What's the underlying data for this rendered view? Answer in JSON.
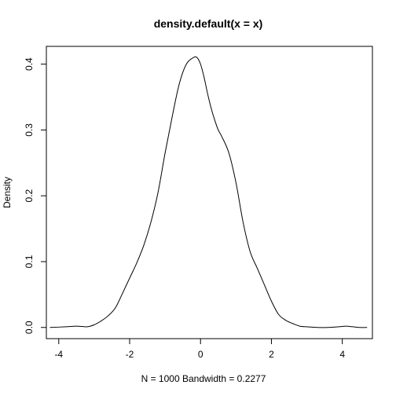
{
  "chart_data": {
    "type": "line",
    "title": "density.default(x = x)",
    "xlabel": "N = 1000   Bandwidth = 0.2277",
    "ylabel": "Density",
    "xlim": [
      -4.35,
      4.85
    ],
    "ylim": [
      -0.017,
      0.427
    ],
    "xticks": [
      -4,
      -2,
      0,
      2,
      4
    ],
    "yticks": [
      0.0,
      0.1,
      0.2,
      0.3,
      0.4
    ],
    "xtick_labels": [
      "-4",
      "-2",
      "0",
      "2",
      "4"
    ],
    "ytick_labels": [
      "0.0",
      "0.1",
      "0.2",
      "0.3",
      "0.4"
    ],
    "grid": false,
    "series": [
      {
        "x": [
          -4.25,
          -3.8,
          -3.5,
          -3.2,
          -3.0,
          -2.8,
          -2.6,
          -2.4,
          -2.2,
          -2.0,
          -1.8,
          -1.6,
          -1.4,
          -1.2,
          -1.0,
          -0.8,
          -0.6,
          -0.4,
          -0.2,
          -0.1,
          0.0,
          0.1,
          0.2,
          0.3,
          0.4,
          0.5,
          0.6,
          0.8,
          1.0,
          1.2,
          1.4,
          1.6,
          1.8,
          2.0,
          2.2,
          2.4,
          2.6,
          2.8,
          3.0,
          3.3,
          3.6,
          3.9,
          4.1,
          4.3,
          4.5,
          4.7
        ],
        "y": [
          0.0,
          0.001,
          0.002,
          0.001,
          0.004,
          0.01,
          0.018,
          0.03,
          0.052,
          0.075,
          0.098,
          0.125,
          0.16,
          0.205,
          0.265,
          0.32,
          0.37,
          0.4,
          0.41,
          0.41,
          0.4,
          0.38,
          0.355,
          0.333,
          0.315,
          0.3,
          0.29,
          0.265,
          0.22,
          0.16,
          0.115,
          0.09,
          0.065,
          0.04,
          0.02,
          0.011,
          0.006,
          0.002,
          0.001,
          0.0,
          0.0,
          0.001,
          0.002,
          0.001,
          0.0,
          0.0
        ]
      }
    ]
  }
}
